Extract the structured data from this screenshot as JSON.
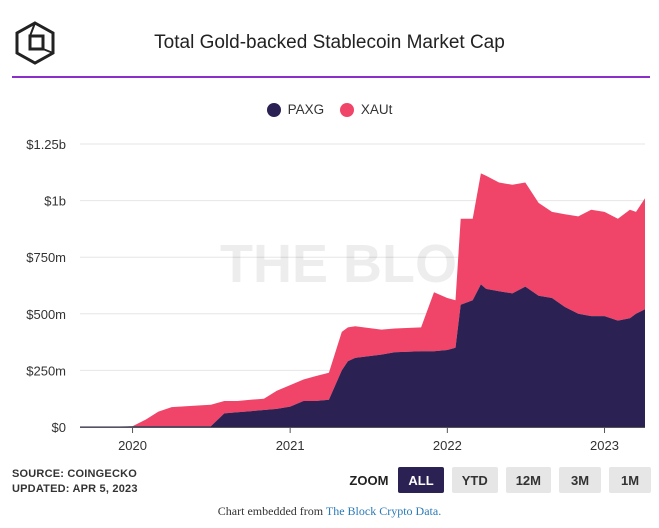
{
  "header": {
    "title": "Total Gold-backed Stablecoin Market Cap",
    "logo_icon": "the-block-cube-logo-icon"
  },
  "legend": {
    "items": [
      {
        "label": "PAXG",
        "color": "#2b2152"
      },
      {
        "label": "XAUt",
        "color": "#f04468"
      }
    ]
  },
  "watermark": "THE BLOCK",
  "footer": {
    "source": "SOURCE: COINGECKO",
    "updated": "UPDATED: APR 5, 2023"
  },
  "zoom": {
    "label": "ZOOM",
    "options": [
      "ALL",
      "YTD",
      "12M",
      "3M",
      "1M"
    ],
    "selected": "ALL"
  },
  "embed": {
    "prefix": "Chart embedded from ",
    "link_text": "The Block Crypto Data."
  },
  "chart_data": {
    "type": "area",
    "stacked": true,
    "title": "Total Gold-backed Stablecoin Market Cap",
    "xlabel": "",
    "ylabel": "",
    "x_ticks": [
      "2020",
      "2021",
      "2022",
      "2023"
    ],
    "y_ticks": [
      "$0",
      "$250m",
      "$500m",
      "$750m",
      "$1b",
      "$1.25b"
    ],
    "ylim": [
      0,
      1250000000
    ],
    "xlim": [
      "2019-09-01",
      "2023-04-05"
    ],
    "grid": true,
    "legend_position": "top",
    "dates": [
      "2019-09-01",
      "2019-12-01",
      "2020-01-01",
      "2020-02-01",
      "2020-03-01",
      "2020-04-01",
      "2020-06-01",
      "2020-07-01",
      "2020-08-01",
      "2020-09-01",
      "2020-10-01",
      "2020-11-01",
      "2020-12-01",
      "2021-01-01",
      "2021-02-01",
      "2021-03-01",
      "2021-04-01",
      "2021-05-01",
      "2021-05-15",
      "2021-06-01",
      "2021-08-01",
      "2021-09-01",
      "2021-11-01",
      "2021-12-01",
      "2022-01-01",
      "2022-01-20",
      "2022-02-01",
      "2022-03-01",
      "2022-03-20",
      "2022-04-01",
      "2022-05-01",
      "2022-06-01",
      "2022-07-01",
      "2022-08-01",
      "2022-09-01",
      "2022-10-01",
      "2022-11-01",
      "2022-12-01",
      "2023-01-01",
      "2023-02-01",
      "2023-03-01",
      "2023-03-15",
      "2023-04-05"
    ],
    "series": [
      {
        "name": "PAXG",
        "color": "#2b2152",
        "values": [
          2000000,
          2000000,
          3000000,
          3000000,
          3000000,
          3000000,
          3000000,
          3000000,
          60000000,
          65000000,
          70000000,
          75000000,
          80000000,
          90000000,
          115000000,
          115000000,
          120000000,
          250000000,
          290000000,
          305000000,
          320000000,
          330000000,
          335000000,
          335000000,
          340000000,
          350000000,
          540000000,
          560000000,
          630000000,
          610000000,
          600000000,
          590000000,
          620000000,
          580000000,
          570000000,
          530000000,
          500000000,
          490000000,
          490000000,
          470000000,
          480000000,
          500000000,
          520000000
        ]
      },
      {
        "name": "XAUt",
        "color": "#f04468",
        "values": [
          0,
          0,
          0,
          30000000,
          65000000,
          85000000,
          92000000,
          95000000,
          55000000,
          50000000,
          50000000,
          50000000,
          80000000,
          95000000,
          95000000,
          110000000,
          120000000,
          170000000,
          150000000,
          140000000,
          110000000,
          105000000,
          105000000,
          260000000,
          230000000,
          210000000,
          380000000,
          360000000,
          490000000,
          500000000,
          480000000,
          480000000,
          460000000,
          410000000,
          380000000,
          410000000,
          430000000,
          470000000,
          460000000,
          450000000,
          480000000,
          450000000,
          490000000
        ]
      }
    ]
  }
}
